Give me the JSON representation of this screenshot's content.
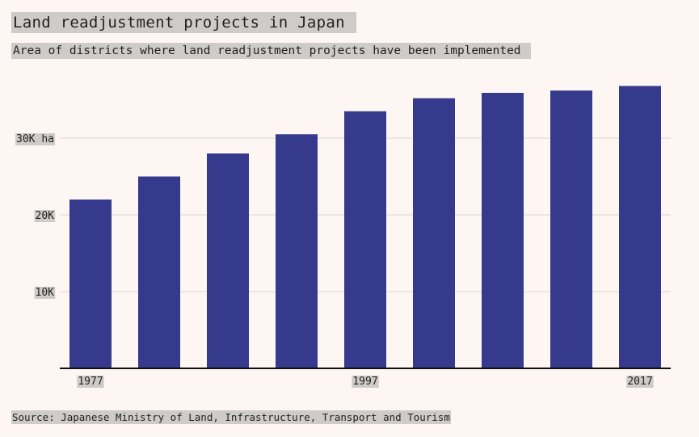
{
  "chart_data": {
    "type": "bar",
    "title": "Land readjustment projects in Japan",
    "subtitle": "Area of districts where land readjustment projects have been implemented",
    "source": "Source: Japanese Ministry of Land, Infrastructure, Transport and Tourism",
    "x": [
      1977,
      1982,
      1987,
      1992,
      1997,
      2002,
      2007,
      2012,
      2017
    ],
    "x_tick_labels": [
      "1977",
      "1997",
      "2017"
    ],
    "x_tick_values": [
      1977,
      1997,
      2017
    ],
    "values": [
      22000,
      25000,
      28000,
      30500,
      33500,
      35200,
      35900,
      36200,
      36800
    ],
    "y_ticks": [
      10000,
      20000,
      30000
    ],
    "y_tick_labels": [
      "10K",
      "20K",
      "30K ha"
    ],
    "ylim": [
      0,
      40000
    ],
    "grid": true,
    "colors": {
      "bar": "#353a8c",
      "background": "#fdf6f2",
      "label_highlight": "#cfcbc8",
      "grid": "#dcd6d2",
      "axis": "#111111"
    }
  }
}
